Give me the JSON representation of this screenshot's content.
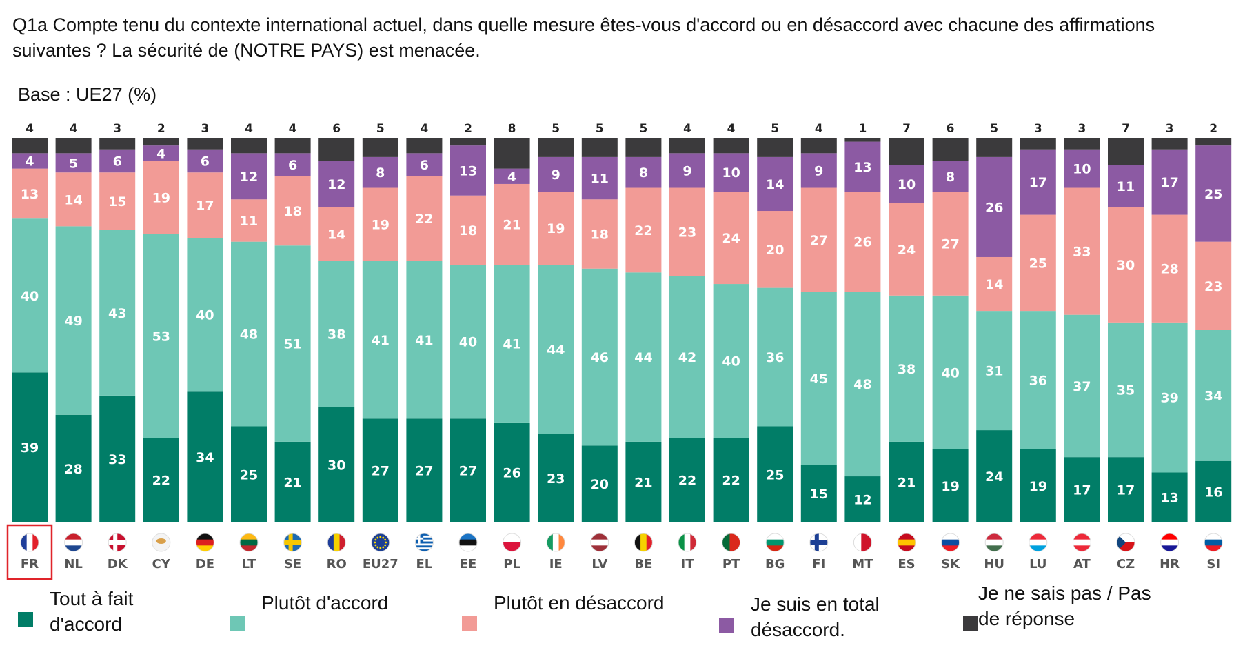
{
  "title": "Q1a Compte tenu du contexte international actuel, dans quelle mesure êtes-vous d'accord ou en désaccord avec chacune des affirmations suivantes ? La sécurité de (NOTRE PAYS) est menacée.",
  "base_label": "Base : UE27 (%)",
  "highlighted_category": "FR",
  "colors": {
    "tout_a_fait": "#017d67",
    "plutot_accord": "#6ec7b5",
    "plutot_desaccord": "#f29b96",
    "total_desaccord": "#8c5aa3",
    "ne_sais_pas": "#3b3a3c",
    "highlight": "#e0242a"
  },
  "chart_data": {
    "type": "bar",
    "stacked": true,
    "normalized": true,
    "title": "Q1a Compte tenu du contexte international actuel, dans quelle mesure êtes-vous d'accord ou en désaccord avec chacune des affirmations suivantes ? La sécurité de (NOTRE PAYS) est menacée.",
    "ylabel": "%",
    "categories": [
      "FR",
      "NL",
      "DK",
      "CY",
      "DE",
      "LT",
      "SE",
      "RO",
      "EU27",
      "EL",
      "EE",
      "PL",
      "IE",
      "LV",
      "BE",
      "IT",
      "PT",
      "BG",
      "FI",
      "MT",
      "ES",
      "SK",
      "HU",
      "LU",
      "AT",
      "CZ",
      "HR",
      "SI"
    ],
    "series": [
      {
        "name": "Tout à fait d'accord",
        "color": "#017d67",
        "values": [
          39,
          28,
          33,
          22,
          34,
          25,
          21,
          30,
          27,
          27,
          27,
          26,
          23,
          20,
          21,
          22,
          22,
          25,
          15,
          12,
          21,
          19,
          24,
          19,
          17,
          17,
          13,
          16
        ]
      },
      {
        "name": "Plutôt d'accord",
        "color": "#6ec7b5",
        "values": [
          40,
          49,
          43,
          53,
          40,
          48,
          51,
          38,
          41,
          41,
          40,
          41,
          44,
          46,
          44,
          42,
          40,
          36,
          45,
          48,
          38,
          40,
          31,
          36,
          37,
          35,
          39,
          34
        ]
      },
      {
        "name": "Plutôt en désaccord",
        "color": "#f29b96",
        "values": [
          13,
          14,
          15,
          19,
          17,
          11,
          18,
          14,
          19,
          22,
          18,
          21,
          19,
          18,
          22,
          23,
          24,
          20,
          27,
          26,
          24,
          27,
          14,
          25,
          33,
          30,
          28,
          23
        ]
      },
      {
        "name": "Je suis en total désaccord.",
        "color": "#8c5aa3",
        "values": [
          4,
          5,
          6,
          4,
          6,
          12,
          6,
          12,
          8,
          6,
          13,
          4,
          9,
          11,
          8,
          9,
          10,
          14,
          9,
          13,
          10,
          8,
          26,
          17,
          10,
          11,
          17,
          25
        ]
      },
      {
        "name": "Je ne sais pas / Pas de réponse",
        "color": "#3b3a3c",
        "values": [
          4,
          4,
          3,
          2,
          3,
          4,
          4,
          6,
          5,
          4,
          2,
          8,
          5,
          5,
          5,
          4,
          4,
          5,
          4,
          1,
          7,
          6,
          5,
          3,
          3,
          7,
          3,
          2
        ]
      }
    ]
  },
  "legend": [
    {
      "label": "Tout à fait d'accord",
      "line1": "Tout à fait",
      "line2": "d'accord",
      "color": "#017d67"
    },
    {
      "label": "Plutôt d'accord",
      "line1": "Plutôt d'accord",
      "line2": "",
      "color": "#6ec7b5"
    },
    {
      "label": "Plutôt en désaccord",
      "line1": "Plutôt en désaccord",
      "line2": "",
      "color": "#f29b96"
    },
    {
      "label": "Je suis en total désaccord.",
      "line1": "Je suis en total",
      "line2": "désaccord.",
      "color": "#8c5aa3"
    },
    {
      "label": "Je ne sais pas / Pas de réponse",
      "line1": "Je ne sais pas / Pas",
      "line2": "de réponse",
      "color": "#3b3a3c"
    }
  ]
}
